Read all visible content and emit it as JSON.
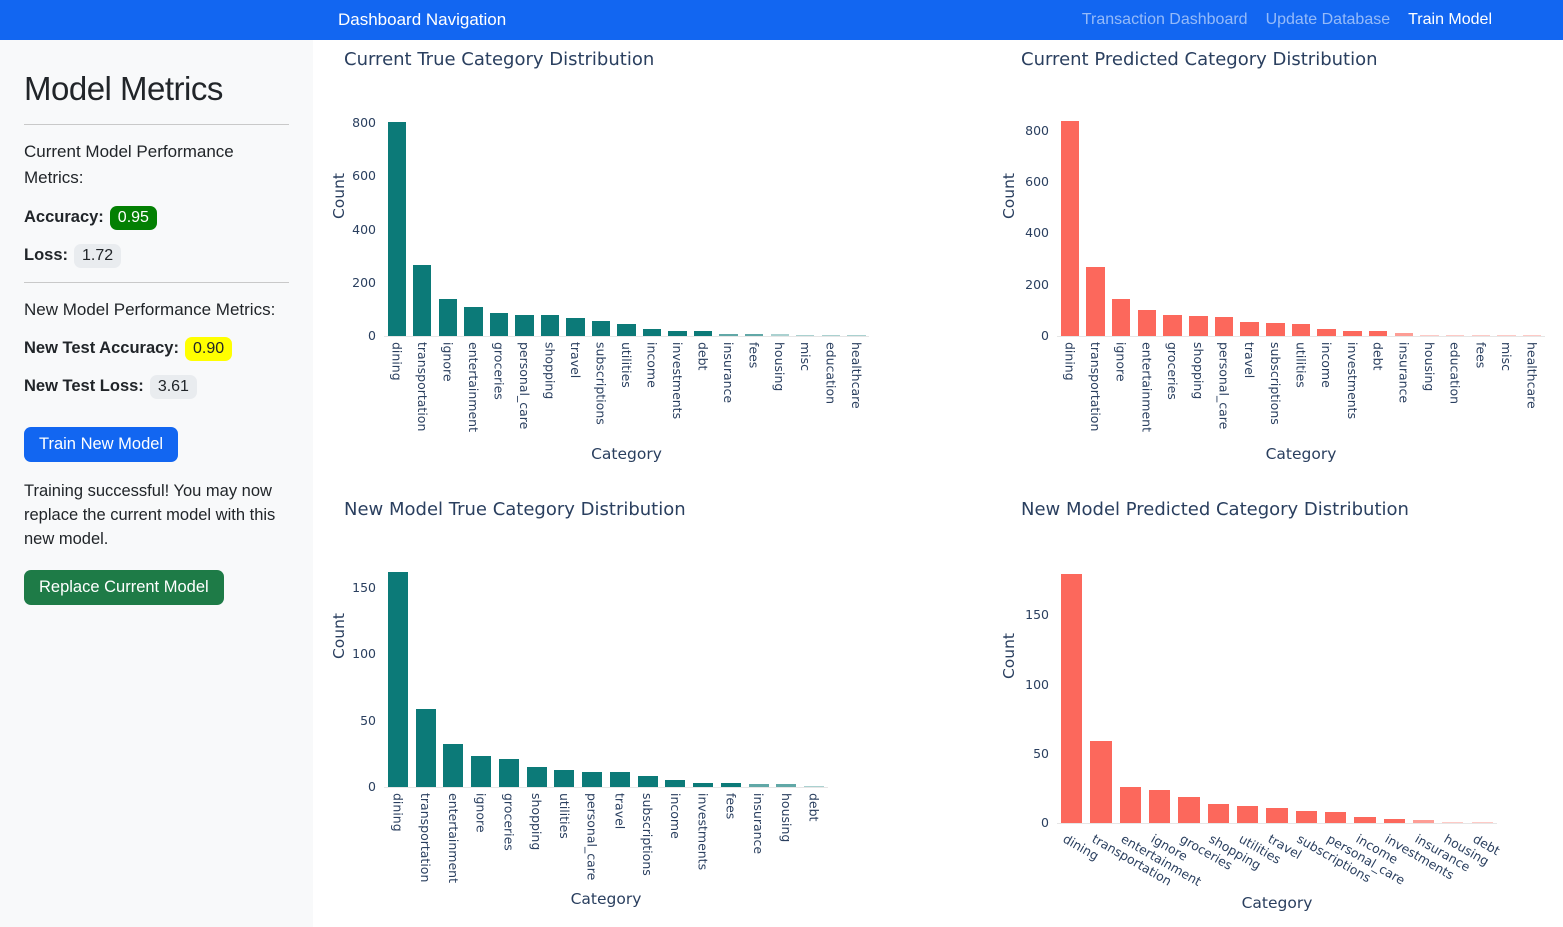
{
  "navbar": {
    "brand": "Dashboard Navigation",
    "links": [
      {
        "label": "Transaction Dashboard",
        "active": false
      },
      {
        "label": "Update Database",
        "active": false
      },
      {
        "label": "Train Model",
        "active": true
      }
    ]
  },
  "sidebar": {
    "title": "Model Metrics",
    "current_section_heading": "Current Model Performance Metrics:",
    "accuracy_label": "Accuracy:",
    "accuracy_value": "0.95",
    "loss_label": "Loss:",
    "loss_value": "1.72",
    "new_section_heading": "New Model Performance Metrics:",
    "new_accuracy_label": "New Test Accuracy:",
    "new_accuracy_value": "0.90",
    "new_loss_label": "New Test Loss:",
    "new_loss_value": "3.61",
    "train_button_label": "Train New Model",
    "status_message": "Training successful! You may now replace the current model with this new model.",
    "replace_button_label": "Replace Current Model"
  },
  "colors": {
    "navbar_blue": "#1266f1",
    "teal_bar": "#0c7a78",
    "salmon_bar": "#fc685c",
    "badge_green": "#038003",
    "badge_yellow": "#ffff00",
    "badge_gray": "#e9ecef",
    "button_blue": "#1266f1",
    "button_green": "#1e7b47",
    "chart_text": "#2a3f5f"
  },
  "chart_data": [
    {
      "type": "bar",
      "title": "Current True Category Distribution",
      "xlabel": "Category",
      "ylabel": "Count",
      "bar_color": "#0c7a78",
      "ylim": [
        0,
        830
      ],
      "yticks": [
        0,
        200,
        400,
        600,
        800
      ],
      "grid": false,
      "legend": false,
      "tick_style": "vertical",
      "categories": [
        "dining",
        "transportation",
        "ignore",
        "entertainment",
        "groceries",
        "personal_care",
        "shopping",
        "travel",
        "subscriptions",
        "utilities",
        "income",
        "investments",
        "debt",
        "insurance",
        "fees",
        "housing",
        "misc",
        "education",
        "healthcare"
      ],
      "values": [
        805,
        268,
        140,
        110,
        87,
        80,
        78,
        66,
        55,
        45,
        25,
        20,
        17,
        8,
        7,
        6,
        3,
        2,
        1
      ]
    },
    {
      "type": "bar",
      "title": "Current Predicted Category Distribution",
      "xlabel": "Category",
      "ylabel": "Count",
      "bar_color": "#fc685c",
      "ylim": [
        0,
        862
      ],
      "yticks": [
        0,
        200,
        400,
        600,
        800
      ],
      "grid": false,
      "legend": false,
      "tick_style": "vertical",
      "categories": [
        "dining",
        "transportation",
        "ignore",
        "entertainment",
        "groceries",
        "shopping",
        "personal_care",
        "travel",
        "subscriptions",
        "utilities",
        "income",
        "investments",
        "debt",
        "insurance",
        "housing",
        "education",
        "fees",
        "misc",
        "healthcare"
      ],
      "values": [
        838,
        270,
        143,
        102,
        82,
        79,
        76,
        53,
        51,
        48,
        26,
        21,
        18,
        10,
        5,
        4,
        3,
        2,
        1
      ]
    },
    {
      "type": "bar",
      "title": "New Model True Category Distribution",
      "xlabel": "Category",
      "ylabel": "Count",
      "bar_color": "#0c7a78",
      "ylim": [
        0,
        182
      ],
      "yticks": [
        0,
        50,
        100,
        150
      ],
      "grid": false,
      "legend": false,
      "tick_style": "vertical",
      "categories": [
        "dining",
        "transportation",
        "entertainment",
        "ignore",
        "groceries",
        "shopping",
        "utilities",
        "personal_care",
        "travel",
        "subscriptions",
        "income",
        "investments",
        "fees",
        "insurance",
        "housing",
        "debt"
      ],
      "values": [
        162,
        59,
        32,
        23,
        21,
        15,
        13,
        11,
        11,
        8,
        5,
        3,
        3,
        2,
        2,
        1
      ]
    },
    {
      "type": "bar",
      "title": "New Model Predicted Category Distribution",
      "xlabel": "Category",
      "ylabel": "Count",
      "bar_color": "#fc685c",
      "ylim": [
        0,
        198
      ],
      "yticks": [
        0,
        50,
        100,
        150
      ],
      "grid": false,
      "legend": false,
      "tick_style": "angled",
      "categories": [
        "dining",
        "transportation",
        "entertainment",
        "ignore",
        "groceries",
        "shopping",
        "utilities",
        "travel",
        "subscriptions",
        "personal_care",
        "income",
        "investments",
        "insurance",
        "housing",
        "debt"
      ],
      "values": [
        180,
        59,
        26,
        24,
        19,
        14,
        12,
        11,
        9,
        8,
        4,
        3,
        2,
        1,
        1
      ]
    }
  ]
}
